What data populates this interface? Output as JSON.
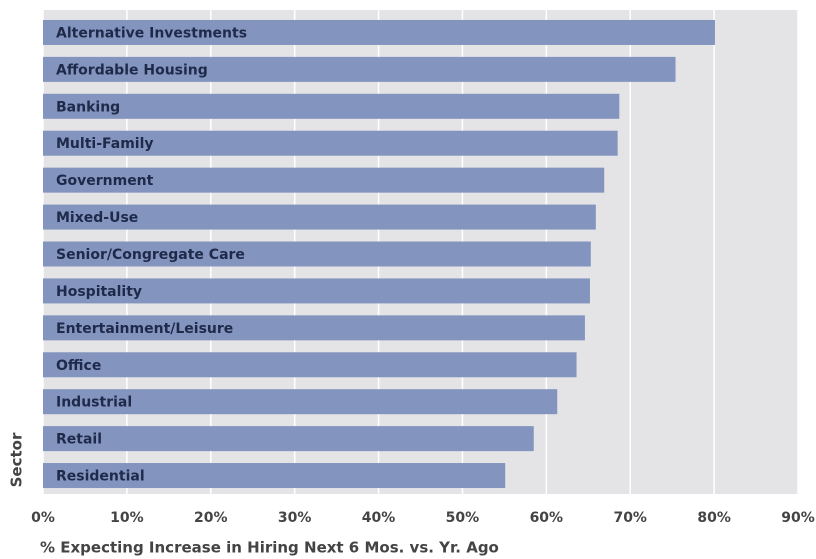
{
  "chart_data": {
    "type": "bar",
    "orientation": "horizontal",
    "x_label": "% Expecting Increase in Hiring Next 6 Mos. vs. Yr. Ago",
    "y_label": "Sector",
    "categories": [
      "Alternative Investments",
      "Affordable Housing",
      "Banking",
      "Multi-Family",
      "Government",
      "Mixed-Use",
      "Senior/Congregate Care",
      "Hospitality",
      "Entertainment/Leisure",
      "Office",
      "Industrial",
      "Retail",
      "Residential"
    ],
    "values": [
      80.1,
      75.4,
      68.7,
      68.5,
      66.9,
      65.9,
      65.3,
      65.2,
      64.6,
      63.6,
      61.3,
      58.5,
      55.1
    ],
    "color": "#8394bf",
    "xlim": [
      0,
      90
    ],
    "xticks": [
      {
        "value": 0,
        "label": "0%"
      },
      {
        "value": 10,
        "label": "10%"
      },
      {
        "value": 20,
        "label": "20%"
      },
      {
        "value": 30,
        "label": "30%"
      },
      {
        "value": 40,
        "label": "40%"
      },
      {
        "value": 50,
        "label": "50%"
      },
      {
        "value": 60,
        "label": "60%"
      },
      {
        "value": 70,
        "label": "70%"
      },
      {
        "value": 80,
        "label": "80%"
      },
      {
        "value": 90,
        "label": "90%"
      }
    ],
    "grid": true
  }
}
